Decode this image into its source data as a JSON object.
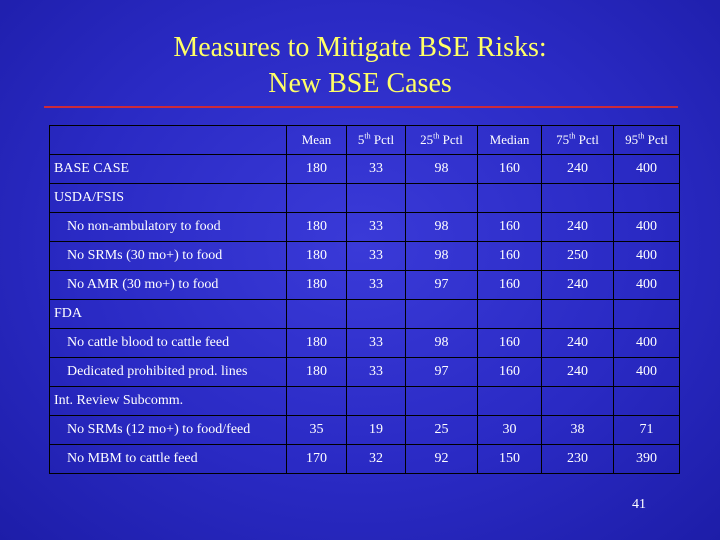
{
  "title": {
    "line1": "Measures to Mitigate BSE Risks:",
    "line2": "New BSE Cases"
  },
  "colors": {
    "background": "#2a2ac4",
    "title": "#ffff66",
    "rule": "#cc2a3a",
    "text": "#ffffff"
  },
  "table": {
    "headers": [
      {
        "pre": "Mean",
        "sup": "",
        "post": ""
      },
      {
        "pre": "5",
        "sup": "th",
        "post": " Pctl"
      },
      {
        "pre": "25",
        "sup": "th",
        "post": " Pctl"
      },
      {
        "pre": "Median",
        "sup": "",
        "post": ""
      },
      {
        "pre": "75",
        "sup": "th",
        "post": " Pctl"
      },
      {
        "pre": "95",
        "sup": "th",
        "post": " Pctl"
      }
    ],
    "base_case": {
      "label": "BASE CASE",
      "values": [
        "180",
        "33",
        "98",
        "160",
        "240",
        "400"
      ]
    },
    "groups": [
      {
        "label": "USDA/FSIS",
        "rows": [
          {
            "label": "No non-ambulatory to food",
            "values": [
              "180",
              "33",
              "98",
              "160",
              "240",
              "400"
            ]
          },
          {
            "label": "No SRMs (30 mo+) to food",
            "values": [
              "180",
              "33",
              "98",
              "160",
              "250",
              "400"
            ]
          },
          {
            "label": "No AMR (30 mo+) to food",
            "values": [
              "180",
              "33",
              "97",
              "160",
              "240",
              "400"
            ]
          }
        ]
      },
      {
        "label": "FDA",
        "rows": [
          {
            "label": "No cattle blood to cattle feed",
            "values": [
              "180",
              "33",
              "98",
              "160",
              "240",
              "400"
            ]
          },
          {
            "label": "Dedicated prohibited prod. lines",
            "values": [
              "180",
              "33",
              "97",
              "160",
              "240",
              "400"
            ]
          }
        ]
      },
      {
        "label": "Int. Review Subcomm.",
        "rows": [
          {
            "label": "No SRMs (12 mo+) to food/feed",
            "values": [
              "35",
              "19",
              "25",
              "30",
              "38",
              "71"
            ]
          },
          {
            "label": "No MBM to cattle feed",
            "values": [
              "170",
              "32",
              "92",
              "150",
              "230",
              "390"
            ]
          }
        ]
      }
    ]
  },
  "page_number": "41"
}
